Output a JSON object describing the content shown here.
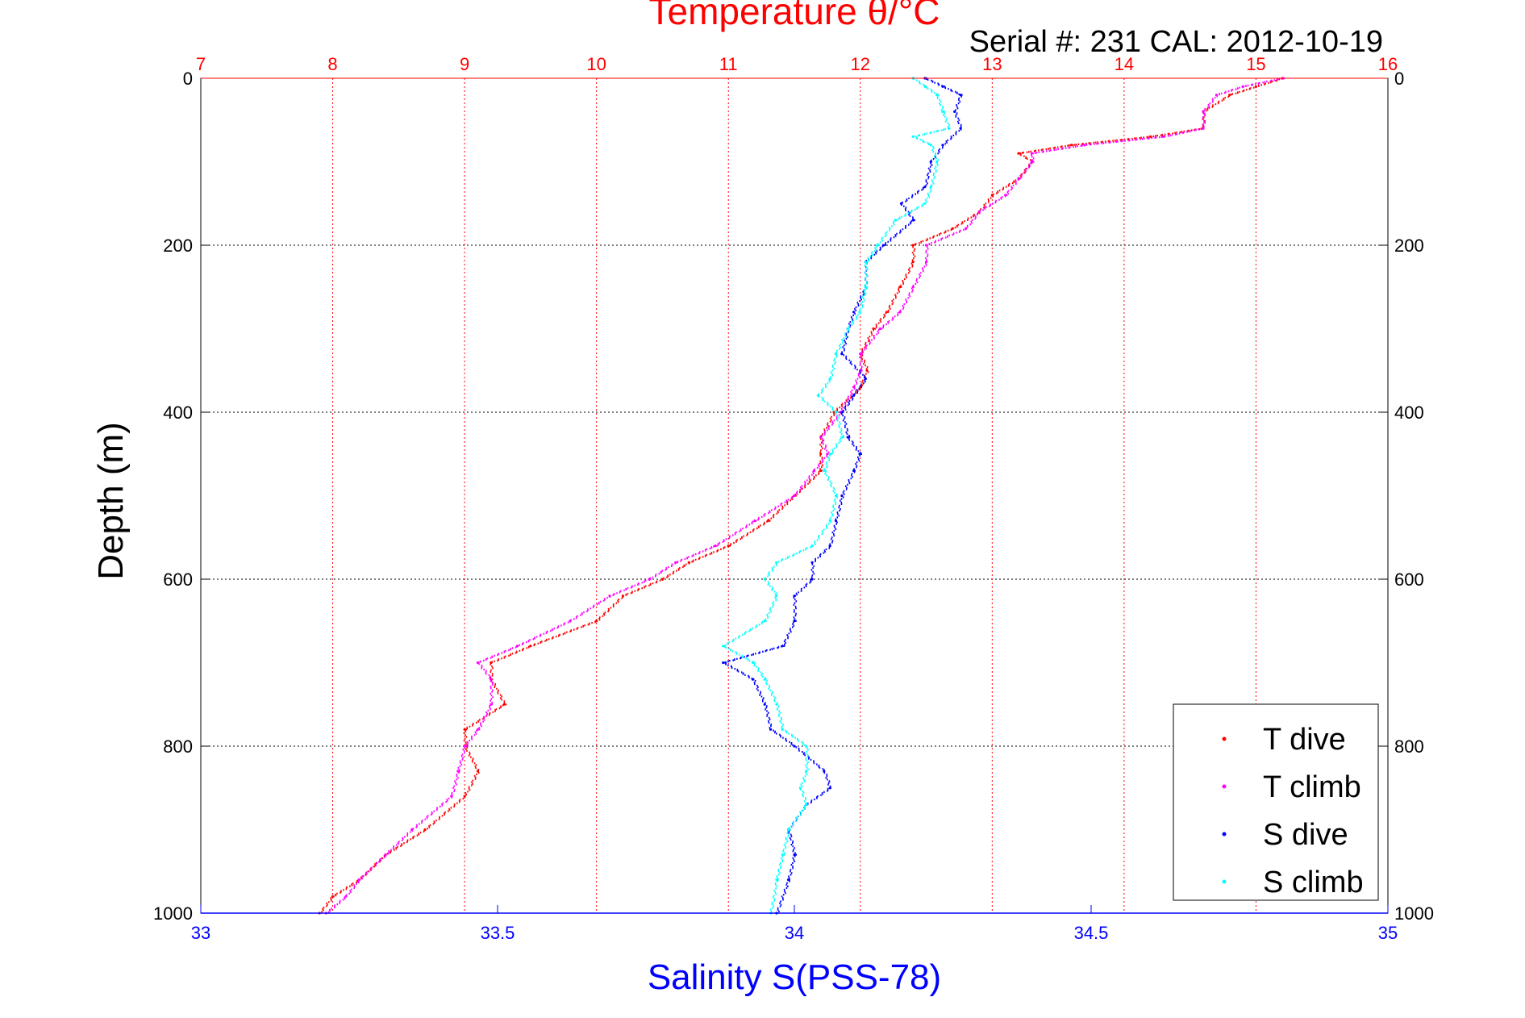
{
  "chart_data": {
    "type": "scatter",
    "title": "Temperature θ/°C",
    "subtitle": "Serial #: 231  CAL: 2012-10-19",
    "ylabel": "Depth (m)",
    "xlabel": "Salinity S(PSS-78)",
    "grid": true,
    "legend_position": "bottom-right",
    "axes": {
      "depth": {
        "range": [
          0,
          1000
        ],
        "reversed": true,
        "ticks": [
          0,
          200,
          400,
          600,
          800,
          1000
        ],
        "tick_labels": [
          "0",
          "200",
          "400",
          "600",
          "800",
          "1000"
        ]
      },
      "temperature": {
        "position": "top",
        "range": [
          7,
          16
        ],
        "ticks": [
          7,
          8,
          9,
          10,
          11,
          12,
          13,
          14,
          15,
          16
        ],
        "tick_labels": [
          "7",
          "8",
          "9",
          "10",
          "11",
          "12",
          "13",
          "14",
          "15",
          "16"
        ],
        "color": "#ff0000"
      },
      "salinity": {
        "position": "bottom",
        "range": [
          33,
          35
        ],
        "ticks": [
          33,
          33.5,
          34,
          34.5,
          35
        ],
        "tick_labels": [
          "33",
          "33.5",
          "34",
          "34.5",
          "35"
        ],
        "color": "#0000ff"
      }
    },
    "series": [
      {
        "name": "T dive",
        "axis": "temperature",
        "color": "#ff0000",
        "depth": [
          0,
          10,
          20,
          40,
          60,
          70,
          80,
          90,
          100,
          120,
          140,
          160,
          180,
          200,
          220,
          250,
          280,
          300,
          330,
          350,
          370,
          400,
          430,
          450,
          470,
          500,
          530,
          560,
          580,
          600,
          620,
          650,
          680,
          700,
          720,
          750,
          780,
          800,
          830,
          860,
          900,
          930,
          960,
          980,
          1000
        ],
        "value": [
          15.2,
          15.0,
          14.8,
          14.6,
          14.6,
          14.2,
          13.6,
          13.2,
          13.3,
          13.2,
          13.0,
          12.9,
          12.7,
          12.4,
          12.4,
          12.3,
          12.2,
          12.1,
          12.0,
          12.05,
          12.0,
          11.8,
          11.7,
          11.7,
          11.7,
          11.5,
          11.3,
          11.0,
          10.7,
          10.5,
          10.2,
          10.0,
          9.5,
          9.2,
          9.2,
          9.3,
          9.0,
          9.0,
          9.1,
          9.0,
          8.7,
          8.4,
          8.2,
          8.0,
          7.9
        ]
      },
      {
        "name": "T climb",
        "axis": "temperature",
        "color": "#ff00ff",
        "depth": [
          0,
          10,
          20,
          40,
          60,
          70,
          80,
          90,
          100,
          120,
          140,
          160,
          180,
          200,
          220,
          250,
          280,
          300,
          330,
          350,
          370,
          400,
          430,
          450,
          470,
          500,
          530,
          560,
          580,
          600,
          620,
          650,
          680,
          700,
          720,
          750,
          780,
          800,
          830,
          860,
          900,
          930,
          960,
          980,
          1000
        ],
        "value": [
          15.2,
          14.9,
          14.7,
          14.6,
          14.6,
          14.3,
          13.7,
          13.3,
          13.3,
          13.2,
          13.1,
          12.9,
          12.8,
          12.5,
          12.5,
          12.4,
          12.3,
          12.15,
          12.0,
          12.0,
          11.95,
          11.85,
          11.7,
          11.75,
          11.65,
          11.5,
          11.2,
          10.9,
          10.6,
          10.4,
          10.1,
          9.8,
          9.4,
          9.1,
          9.2,
          9.2,
          9.1,
          9.0,
          8.95,
          8.9,
          8.6,
          8.4,
          8.2,
          8.1,
          7.95
        ]
      },
      {
        "name": "S dive",
        "axis": "salinity",
        "color": "#0000ff",
        "depth": [
          0,
          10,
          20,
          40,
          60,
          80,
          100,
          130,
          150,
          170,
          200,
          220,
          250,
          280,
          300,
          330,
          360,
          380,
          400,
          430,
          450,
          470,
          500,
          530,
          560,
          580,
          600,
          620,
          650,
          680,
          700,
          720,
          750,
          780,
          800,
          830,
          850,
          870,
          900,
          930,
          960,
          1000
        ],
        "value": [
          34.22,
          34.25,
          34.28,
          34.27,
          34.28,
          34.25,
          34.23,
          34.22,
          34.18,
          34.2,
          34.15,
          34.12,
          34.12,
          34.1,
          34.09,
          34.08,
          34.12,
          34.1,
          34.08,
          34.09,
          34.11,
          34.1,
          34.08,
          34.07,
          34.06,
          34.03,
          34.03,
          34.0,
          34.0,
          33.98,
          33.88,
          33.93,
          33.95,
          33.96,
          34.0,
          34.05,
          34.06,
          34.02,
          33.99,
          34.0,
          33.99,
          33.97
        ]
      },
      {
        "name": "S climb",
        "axis": "salinity",
        "color": "#00ffff",
        "depth": [
          0,
          10,
          20,
          40,
          60,
          70,
          80,
          100,
          130,
          150,
          170,
          200,
          220,
          250,
          280,
          300,
          330,
          360,
          380,
          400,
          430,
          450,
          470,
          500,
          530,
          560,
          580,
          600,
          620,
          650,
          680,
          700,
          720,
          750,
          780,
          800,
          830,
          850,
          870,
          900,
          930,
          960,
          1000
        ],
        "value": [
          34.2,
          34.22,
          34.24,
          34.25,
          34.26,
          34.2,
          34.23,
          34.24,
          34.23,
          34.22,
          34.17,
          34.14,
          34.12,
          34.12,
          34.11,
          34.09,
          34.07,
          34.06,
          34.04,
          34.07,
          34.08,
          34.06,
          34.05,
          34.07,
          34.06,
          34.03,
          33.97,
          33.95,
          33.97,
          33.95,
          33.88,
          33.93,
          33.95,
          33.97,
          33.98,
          34.02,
          34.02,
          34.01,
          34.02,
          33.99,
          33.98,
          33.97,
          33.96
        ]
      }
    ]
  }
}
